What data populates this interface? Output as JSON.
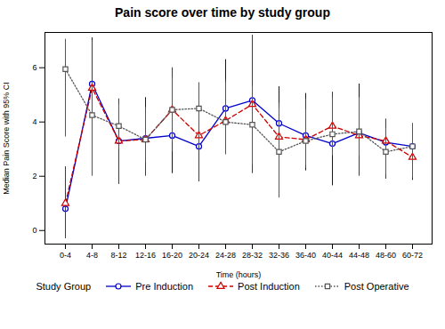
{
  "chart_data": {
    "type": "line",
    "title": "Pain score over time by study group",
    "xlabel": "Time (hours)",
    "ylabel": "Median Pain Score with 95% CI",
    "categories": [
      "0-4",
      "4-8",
      "8-12",
      "12-16",
      "16-20",
      "20-24",
      "24-28",
      "28-32",
      "32-36",
      "36-40",
      "40-44",
      "44-48",
      "48-60",
      "60-72"
    ],
    "ylim": [
      -0.5,
      7.3
    ],
    "yticks": [
      0,
      2,
      4,
      6
    ],
    "grid": false,
    "legend": "bottom",
    "legend_title": "Study Group",
    "series": [
      {
        "name": "Pre Induction",
        "color": "#0000cc",
        "marker": "circle",
        "line_style": "solid",
        "values": [
          0.8,
          5.4,
          3.3,
          3.4,
          3.5,
          3.1,
          4.5,
          4.8,
          3.95,
          3.5,
          3.2,
          3.6,
          3.25,
          3.1
        ],
        "lower": [
          0.0,
          3.6,
          2.2,
          2.15,
          2.1,
          1.8,
          3.0,
          3.3,
          2.5,
          2.2,
          1.65,
          2.1,
          1.9,
          1.85
        ],
        "upper": [
          0.85,
          7.1,
          4.55,
          4.9,
          4.95,
          4.5,
          6.3,
          6.6,
          5.3,
          5.05,
          4.85,
          5.4,
          4.1,
          3.9
        ]
      },
      {
        "name": "Post Induction",
        "color": "#cc0000",
        "marker": "triangle",
        "line_style": "dashed",
        "values": [
          1.0,
          5.25,
          3.3,
          3.35,
          4.45,
          3.5,
          4.05,
          4.65,
          3.45,
          3.35,
          3.85,
          3.5,
          3.3,
          2.7
        ],
        "lower": [
          -0.3,
          2.5,
          1.7,
          2.0,
          2.9,
          1.8,
          2.8,
          2.1,
          2.2,
          2.3,
          2.8,
          2.0,
          1.9,
          1.9
        ],
        "upper": [
          2.35,
          7.0,
          4.85,
          4.55,
          6.0,
          4.85,
          5.55,
          7.2,
          4.7,
          4.85,
          5.1,
          4.85,
          4.1,
          3.45
        ]
      },
      {
        "name": "Post Operative",
        "color": "#555555",
        "marker": "square",
        "line_style": "dotted",
        "values": [
          5.95,
          4.25,
          3.85,
          3.35,
          4.45,
          4.5,
          4.0,
          3.9,
          2.9,
          3.3,
          3.55,
          3.65,
          2.9,
          3.1
        ],
        "lower": [
          3.45,
          2.0,
          3.0,
          2.5,
          3.25,
          3.1,
          2.8,
          2.4,
          1.2,
          2.4,
          2.75,
          2.75,
          2.05,
          1.95
        ],
        "upper": [
          7.05,
          5.45,
          4.65,
          4.5,
          5.65,
          5.45,
          5.45,
          5.3,
          4.5,
          4.45,
          4.9,
          4.9,
          3.75,
          3.95
        ]
      }
    ]
  }
}
